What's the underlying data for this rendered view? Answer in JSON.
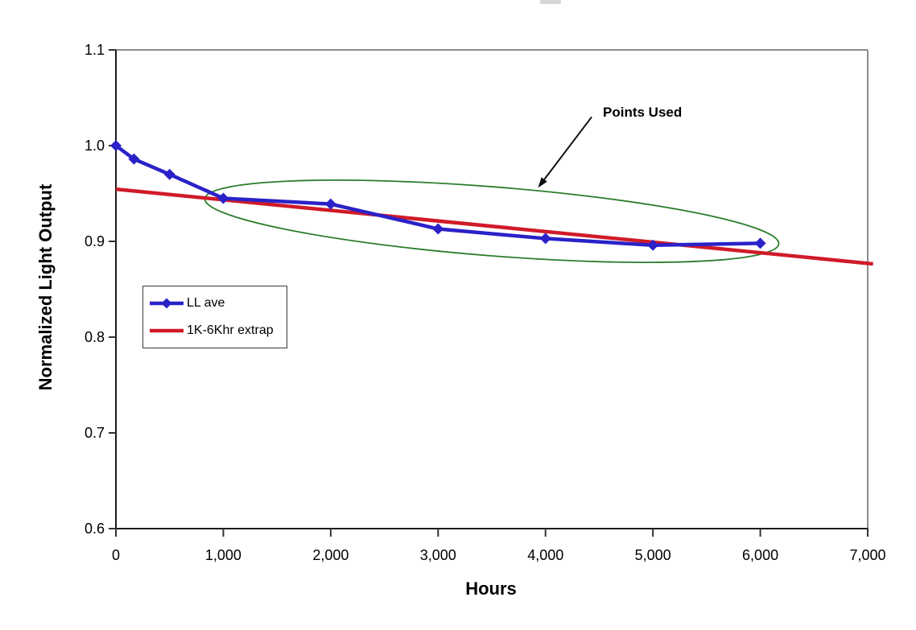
{
  "page": {
    "background": "#ffffff"
  },
  "chart_data": {
    "type": "line",
    "title": "",
    "xlabel": "Hours",
    "ylabel": "Normalized Light Output",
    "xlim": [
      0,
      7000
    ],
    "ylim": [
      0.6,
      1.1
    ],
    "grid": "off",
    "x_ticks": [
      0,
      1000,
      2000,
      3000,
      4000,
      5000,
      6000,
      7000
    ],
    "x_tick_labels": [
      "0",
      "1,000",
      "2,000",
      "3,000",
      "4,000",
      "5,000",
      "6,000",
      "7,000"
    ],
    "y_ticks": [
      0.6,
      0.7,
      0.8,
      0.9,
      1.0,
      1.1
    ],
    "y_tick_labels": [
      "0.6",
      "0.7",
      "0.8",
      "0.9",
      "1.0",
      "1.1"
    ],
    "axis_colors": {
      "left_bottom": "#1a1a1a",
      "top_right": "#8c8c8c",
      "tick": "#333333"
    },
    "legend": {
      "position": "inside-left",
      "entries": [
        {
          "label": "LL ave",
          "color": "#2a22c8",
          "marker": "diamond"
        },
        {
          "label": "1K-6Khr extrap",
          "color": "#d01a28",
          "marker": "none"
        }
      ]
    },
    "series": [
      {
        "name": "LL ave",
        "type": "line-markers",
        "color": "#2a22c8",
        "marker": "diamond",
        "points": [
          [
            0,
            1.0
          ],
          [
            168,
            0.986
          ],
          [
            500,
            0.97
          ],
          [
            1000,
            0.945
          ],
          [
            2000,
            0.939
          ],
          [
            3000,
            0.913
          ],
          [
            4000,
            0.903
          ],
          [
            5000,
            0.896
          ],
          [
            6000,
            0.898
          ]
        ]
      },
      {
        "name": "1K-6Khr extrap",
        "type": "line",
        "color": "#d01a28",
        "marker": "none",
        "points": [
          [
            0,
            0.9545
          ],
          [
            7050,
            0.8765
          ]
        ]
      }
    ],
    "annotations": {
      "label": "Points Used",
      "arrow": {
        "from": [
          4430,
          1.03
        ],
        "to": [
          3930,
          0.956
        ],
        "color": "#111111"
      },
      "ellipse": {
        "center": [
          3500,
          0.921
        ],
        "rx_hours": 2680,
        "ry_value": 0.036,
        "rotation_deg": 4.5,
        "color": "#2b7d2b"
      }
    }
  }
}
